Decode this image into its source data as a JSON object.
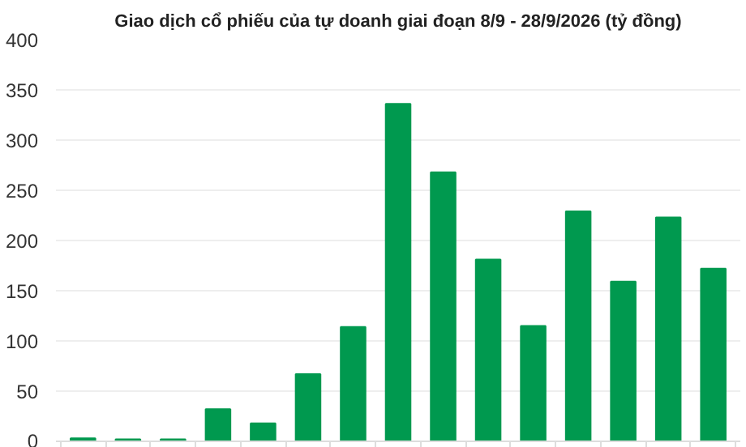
{
  "chart_data": {
    "type": "bar",
    "title": "Giao dịch cổ phiếu của tự doanh giai đoạn 8/9 - 28/9/2026 (tỷ đồng)",
    "categories": [
      null,
      null,
      null,
      null,
      null,
      null,
      null,
      null,
      null,
      null,
      null,
      null,
      null,
      null,
      null
    ],
    "values": [
      3,
      2,
      2,
      32,
      18,
      67,
      114,
      336,
      268,
      181,
      115,
      229,
      159,
      223,
      172
    ],
    "color": "#00994f",
    "ylim": [
      0,
      400
    ],
    "yticks": [
      0,
      50,
      100,
      150,
      200,
      250,
      300,
      350,
      400
    ],
    "grid": "y"
  }
}
